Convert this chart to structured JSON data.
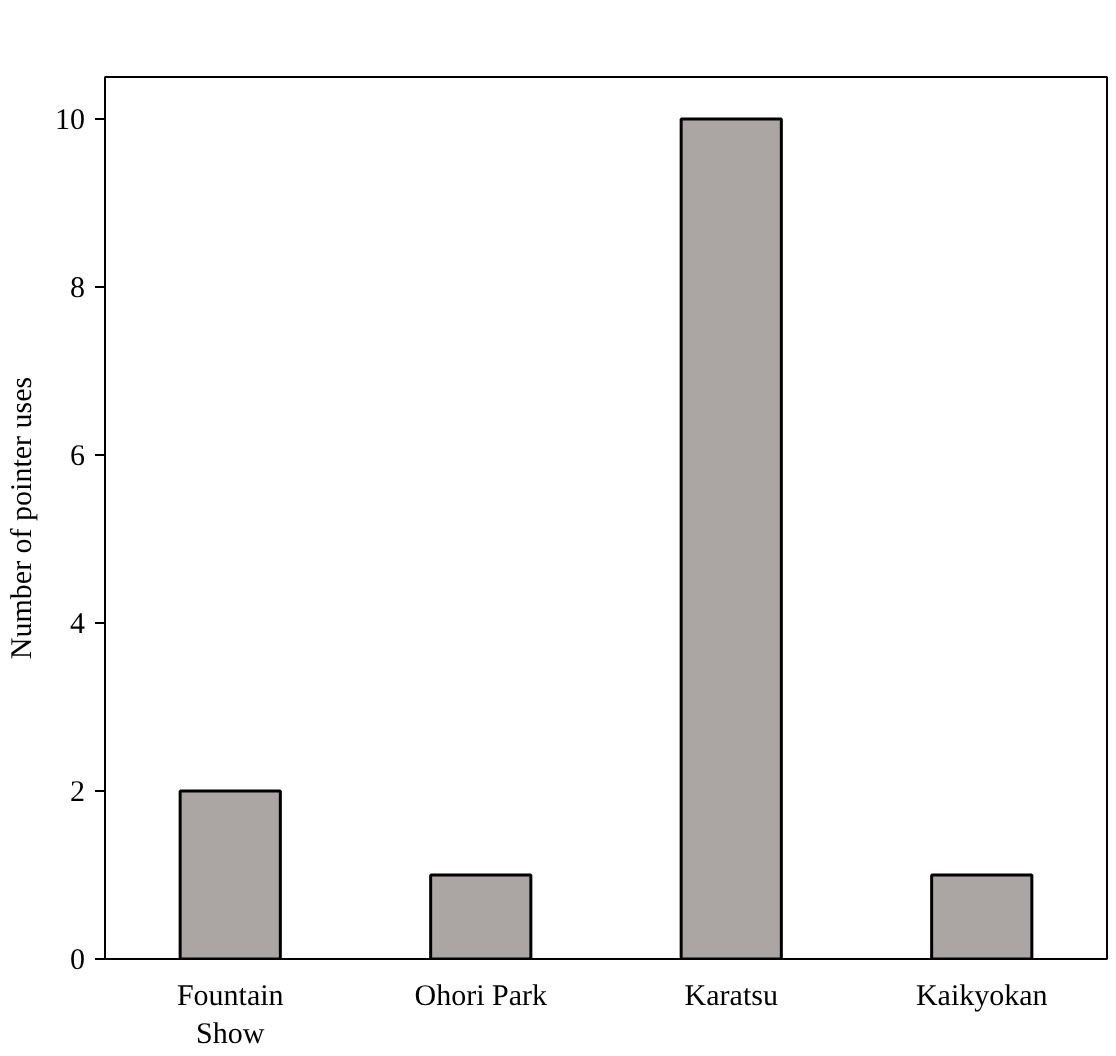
{
  "chart_data": {
    "type": "bar",
    "ylabel": "Number of pointer uses",
    "categories": [
      "Fountain Show",
      "Ohori Park",
      "Karatsu",
      "Kaikyokan"
    ],
    "values": [
      2,
      1,
      10,
      1
    ],
    "color": "#aba5a3",
    "ylim": [
      0,
      10.5
    ],
    "yticks": [
      0,
      2,
      4,
      6,
      8,
      10
    ],
    "grid": false
  }
}
